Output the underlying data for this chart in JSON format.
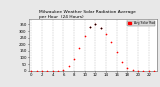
{
  "title": "Milwaukee Weather Solar Radiation Average\nper Hour  (24 Hours)",
  "title_fontsize": 3.2,
  "title_color": "#000000",
  "background_color": "#e8e8e8",
  "plot_background": "#ffffff",
  "hours": [
    0,
    1,
    2,
    3,
    4,
    5,
    6,
    7,
    8,
    9,
    10,
    11,
    12,
    13,
    14,
    15,
    16,
    17,
    18,
    19,
    20,
    21,
    22,
    23
  ],
  "solar_values": [
    0,
    0,
    0,
    0,
    0,
    0.5,
    8,
    35,
    90,
    175,
    260,
    330,
    350,
    320,
    280,
    220,
    145,
    65,
    20,
    3,
    0,
    0,
    0,
    0
  ],
  "dot_color": "#ff0000",
  "dot_size": 1.5,
  "peak_color": "#000000",
  "peak_hours": [
    11,
    12,
    13
  ],
  "peak_values": [
    330,
    350,
    320
  ],
  "ylabel_vals": [
    0,
    50,
    100,
    150,
    200,
    250,
    300,
    350
  ],
  "ylim": [
    -5,
    390
  ],
  "xlim": [
    -0.5,
    23.5
  ],
  "legend_color": "#ff0000",
  "legend_label": "Avg Solar Rad",
  "grid_color": "#999999",
  "tick_fontsize": 2.8,
  "xtick_every": 2
}
